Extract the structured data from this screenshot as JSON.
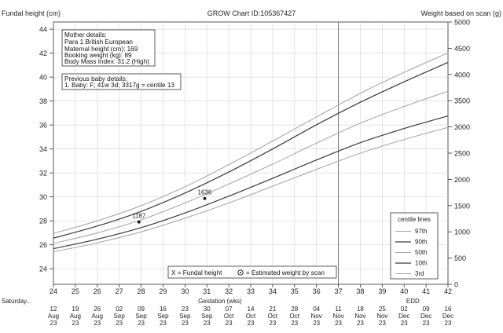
{
  "header": {
    "left_label": "Fundal height (cm)",
    "center_label": "GROW Chart ID:105367427",
    "right_label": "Weight based on scan (g)"
  },
  "mother_details": {
    "title": "Mother details:",
    "lines": [
      "Para 1  British European",
      "Maternal height (cm): 169",
      "Booking weight (kg): 89",
      "Body Mass Index: 31.2 (High)"
    ]
  },
  "previous_baby": {
    "title": "Previous baby details:",
    "lines": [
      "1. Baby: F; 41w 3d; 3317g = centile 13"
    ]
  },
  "legend_bottom": {
    "fundal": "X = Fundal height",
    "estimated": "= Estimated weight by scan"
  },
  "centile_legend": {
    "title": "centile lines",
    "items": [
      "97th",
      "90th",
      "50th",
      "10th",
      "3rd"
    ]
  },
  "x_axis": {
    "label": "Gestation (wks)",
    "edd_label": "EDD",
    "start_label": "Saturday...",
    "ticks": [
      24,
      25,
      26,
      27,
      28,
      29,
      30,
      31,
      32,
      33,
      34,
      35,
      36,
      37,
      38,
      39,
      40,
      41,
      42
    ],
    "dates": [
      {
        "wk": 24,
        "day": "12",
        "mon": "Aug",
        "yr": "23"
      },
      {
        "wk": 25,
        "day": "19",
        "mon": "Aug",
        "yr": "23"
      },
      {
        "wk": 26,
        "day": "26",
        "mon": "Aug",
        "yr": "23"
      },
      {
        "wk": 27,
        "day": "02",
        "mon": "Sep",
        "yr": "23"
      },
      {
        "wk": 28,
        "day": "09",
        "mon": "Sep",
        "yr": "23"
      },
      {
        "wk": 29,
        "day": "16",
        "mon": "Sep",
        "yr": "23"
      },
      {
        "wk": 30,
        "day": "23",
        "mon": "Sep",
        "yr": "23"
      },
      {
        "wk": 31,
        "day": "30",
        "mon": "Sep",
        "yr": "23"
      },
      {
        "wk": 32,
        "day": "07",
        "mon": "Oct",
        "yr": "23"
      },
      {
        "wk": 33,
        "day": "14",
        "mon": "Oct",
        "yr": "23"
      },
      {
        "wk": 34,
        "day": "21",
        "mon": "Oct",
        "yr": "23"
      },
      {
        "wk": 35,
        "day": "28",
        "mon": "Oct",
        "yr": "23"
      },
      {
        "wk": 36,
        "day": "04",
        "mon": "Nov",
        "yr": "23"
      },
      {
        "wk": 37,
        "day": "11",
        "mon": "Nov",
        "yr": "23"
      },
      {
        "wk": 38,
        "day": "18",
        "mon": "Nov",
        "yr": "23"
      },
      {
        "wk": 39,
        "day": "25",
        "mon": "Nov",
        "yr": "23"
      },
      {
        "wk": 40,
        "day": "02",
        "mon": "Dec",
        "yr": "23"
      },
      {
        "wk": 41,
        "day": "09",
        "mon": "Dec",
        "yr": "23"
      },
      {
        "wk": 42,
        "day": "16",
        "mon": "Dec",
        "yr": "23"
      }
    ]
  },
  "chart_data": {
    "type": "line",
    "title": "GROW Chart ID:105367427",
    "xlabel": "Gestation (wks)",
    "ylabel": "Fundal height (cm)",
    "y2label": "Weight based on scan (g)",
    "xlim": [
      24,
      42
    ],
    "ylim_fundal": [
      22.7,
      44.6
    ],
    "ylim_weight": [
      0,
      5000
    ],
    "fundal_ticks": [
      24,
      26,
      28,
      30,
      32,
      34,
      36,
      38,
      40,
      42,
      44
    ],
    "weight_ticks": [
      0,
      500,
      1000,
      1500,
      2000,
      2500,
      3000,
      3500,
      4000,
      4500,
      5000
    ],
    "grid": true,
    "reference_line_week": 37,
    "series": [
      {
        "name": "97th",
        "x": [
          24,
          26,
          28,
          30,
          32,
          34,
          36,
          38,
          40,
          42
        ],
        "weight_g": [
          970,
          1210,
          1500,
          1860,
          2280,
          2730,
          3190,
          3640,
          4040,
          4410
        ]
      },
      {
        "name": "90th",
        "x": [
          24,
          26,
          28,
          30,
          32,
          34,
          36,
          38,
          40,
          42
        ],
        "weight_g": [
          880,
          1110,
          1390,
          1740,
          2140,
          2580,
          3040,
          3470,
          3860,
          4230
        ]
      },
      {
        "name": "50th",
        "x": [
          24,
          26,
          28,
          30,
          32,
          34,
          36,
          38,
          40,
          42
        ],
        "weight_g": [
          780,
          980,
          1230,
          1550,
          1910,
          2290,
          2690,
          3070,
          3390,
          3680
        ]
      },
      {
        "name": "10th",
        "x": [
          24,
          26,
          28,
          30,
          32,
          34,
          36,
          38,
          40,
          42
        ],
        "weight_g": [
          680,
          860,
          1080,
          1360,
          1680,
          2020,
          2370,
          2700,
          2970,
          3210
        ]
      },
      {
        "name": "3rd",
        "x": [
          24,
          26,
          28,
          30,
          32,
          34,
          36,
          38,
          40,
          42
        ],
        "weight_g": [
          620,
          790,
          1000,
          1260,
          1550,
          1870,
          2190,
          2500,
          2760,
          2990
        ]
      }
    ],
    "scan_points": [
      {
        "label": "1187",
        "week": 27.9,
        "weight_g": 1187
      },
      {
        "label": "1636",
        "week": 30.9,
        "weight_g": 1636
      }
    ]
  }
}
